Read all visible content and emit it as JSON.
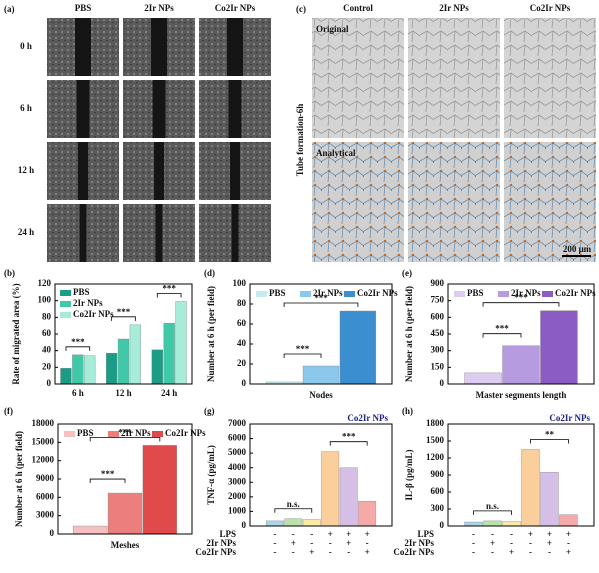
{
  "image_panels": [
    {
      "label": "(a)",
      "columns": [
        "PBS",
        "2Ir NPs",
        "Co2Ir NPs"
      ],
      "rows": [
        "0 h",
        "6 h",
        "12 h",
        "24 h"
      ]
    },
    {
      "label": "(c)",
      "title": "Tube formation-6h",
      "columns": [
        "Control",
        "2Ir NPs",
        "Co2Ir NPs"
      ],
      "rows": [
        "Original",
        "Analytical"
      ],
      "scale_bar": "200 μm"
    }
  ],
  "chart_data": [
    {
      "type": "bar",
      "panel": "(b)",
      "ylabel": "Rate of migrated area (%)",
      "categories": [
        "6 h",
        "12 h",
        "24 h"
      ],
      "series": [
        {
          "name": "PBS",
          "color": "#1b9c86",
          "values": [
            19,
            37,
            41
          ]
        },
        {
          "name": "2Ir NPs",
          "color": "#3fc9a9",
          "values": [
            35,
            54,
            73
          ]
        },
        {
          "name": "Co2Ir NPs",
          "color": "#a6ecd9",
          "values": [
            34,
            71,
            99
          ]
        }
      ],
      "ylim": [
        0,
        120
      ],
      "yticks": [
        0,
        20,
        40,
        60,
        80,
        100,
        120
      ],
      "legend": "top-left",
      "annotations": [
        "***",
        "***",
        "***"
      ]
    },
    {
      "type": "bar",
      "panel": "(d)",
      "ylabel": "Number at 6 h (per field)",
      "xlabel": "Nodes",
      "series": [
        {
          "name": "PBS",
          "color": "#c7ecef",
          "values": [
            2
          ]
        },
        {
          "name": "2Ir NPs",
          "color": "#8cc7ec",
          "values": [
            18
          ]
        },
        {
          "name": "Co2Ir NPs",
          "color": "#3b8fd1",
          "values": [
            73
          ]
        }
      ],
      "ylim": [
        0,
        100
      ],
      "yticks": [
        0,
        20,
        40,
        60,
        80,
        100
      ],
      "legend": "top-left",
      "annotations": [
        "***",
        "***"
      ]
    },
    {
      "type": "bar",
      "panel": "(e)",
      "ylabel": "Number at 6 h (per field)",
      "xlabel": "Master segments length",
      "series": [
        {
          "name": "PBS",
          "color": "#dccdf0",
          "values": [
            100
          ]
        },
        {
          "name": "2Ir NPs",
          "color": "#b79be0",
          "values": [
            345
          ]
        },
        {
          "name": "Co2Ir NPs",
          "color": "#8b5cc4",
          "values": [
            660
          ]
        }
      ],
      "ylim": [
        0,
        900
      ],
      "yticks": [
        0,
        150,
        300,
        450,
        600,
        750,
        900
      ],
      "legend": "top-left",
      "annotations": [
        "***",
        "***"
      ]
    },
    {
      "type": "bar",
      "panel": "(f)",
      "ylabel": "Number at 6 h (per field)",
      "xlabel": "Meshes",
      "series": [
        {
          "name": "PBS",
          "color": "#f5c0c0",
          "values": [
            1300
          ]
        },
        {
          "name": "2Ir NPs",
          "color": "#ec7e7e",
          "values": [
            6700
          ]
        },
        {
          "name": "Co2Ir NPs",
          "color": "#e04a4a",
          "values": [
            14500
          ]
        }
      ],
      "ylim": [
        0,
        18000
      ],
      "yticks": [
        0,
        3000,
        6000,
        9000,
        12000,
        15000,
        18000
      ],
      "legend": "top-left",
      "annotations": [
        "***",
        "***"
      ]
    },
    {
      "type": "bar",
      "panel": "(g)",
      "ylabel": "TNF-α (pg/mL)",
      "legend_note": "Co2Ir NPs",
      "values": [
        350,
        500,
        450,
        5100,
        4000,
        1700
      ],
      "colors": [
        "#a9d4ea",
        "#b9e3a8",
        "#fbeaa4",
        "#fbcf9b",
        "#d6bfe6",
        "#f6a9a9"
      ],
      "ylim": [
        0,
        7000
      ],
      "yticks": [
        0,
        1000,
        2000,
        3000,
        4000,
        5000,
        6000,
        7000
      ],
      "condition_table": [
        {
          "name": "LPS",
          "signs": [
            "-",
            "-",
            "-",
            "+",
            "+",
            "+"
          ]
        },
        {
          "name": "2Ir NPs",
          "signs": [
            "-",
            "+",
            "-",
            "-",
            "+",
            "-"
          ]
        },
        {
          "name": "Co2Ir NPs",
          "signs": [
            "-",
            "-",
            "+",
            "-",
            "-",
            "+"
          ]
        }
      ],
      "annotations": [
        "n.s.",
        "***"
      ]
    },
    {
      "type": "bar",
      "panel": "(h)",
      "ylabel": "IL-β (pg/mL)",
      "legend_note": "Co2Ir NPs",
      "values": [
        70,
        90,
        80,
        1350,
        950,
        200
      ],
      "colors": [
        "#a9d4ea",
        "#b9e3a8",
        "#fbeaa4",
        "#fbcf9b",
        "#d6bfe6",
        "#f6a9a9"
      ],
      "ylim": [
        0,
        1800
      ],
      "yticks": [
        0,
        300,
        600,
        900,
        1200,
        1500,
        1800
      ],
      "condition_table": [
        {
          "name": "LPS",
          "signs": [
            "-",
            "-",
            "-",
            "+",
            "+",
            "+"
          ]
        },
        {
          "name": "2Ir NPs",
          "signs": [
            "-",
            "+",
            "-",
            "-",
            "+",
            "-"
          ]
        },
        {
          "name": "Co2Ir NPs",
          "signs": [
            "-",
            "-",
            "+",
            "-",
            "-",
            "+"
          ]
        }
      ],
      "annotations": [
        "n.s.",
        "**"
      ]
    }
  ]
}
